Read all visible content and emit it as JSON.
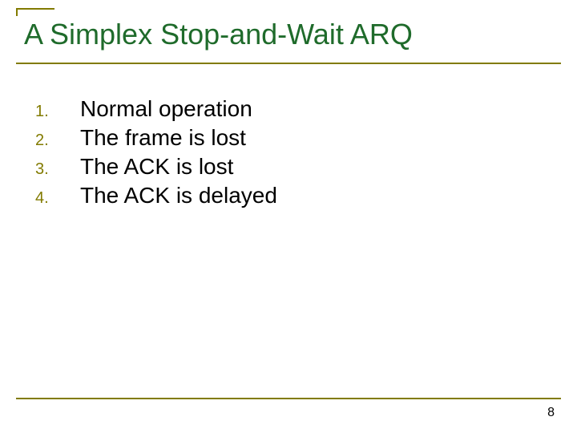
{
  "title": "A Simplex Stop-and-Wait ARQ",
  "title_color": "#1f6b2b",
  "title_fontsize": 36,
  "title_fontweight": 400,
  "accent_color": "#827b00",
  "number_color": "#827b00",
  "number_fontsize": 20,
  "body_color": "#000000",
  "body_fontsize": 28,
  "background_color": "#ffffff",
  "items": [
    {
      "n": "1.",
      "text": "Normal operation"
    },
    {
      "n": "2.",
      "text": "The frame is lost"
    },
    {
      "n": "3.",
      "text": "The ACK is lost"
    },
    {
      "n": "4.",
      "text": "The ACK is delayed"
    }
  ],
  "page_number": "8",
  "page_number_color": "#000000",
  "page_number_fontsize": 16
}
